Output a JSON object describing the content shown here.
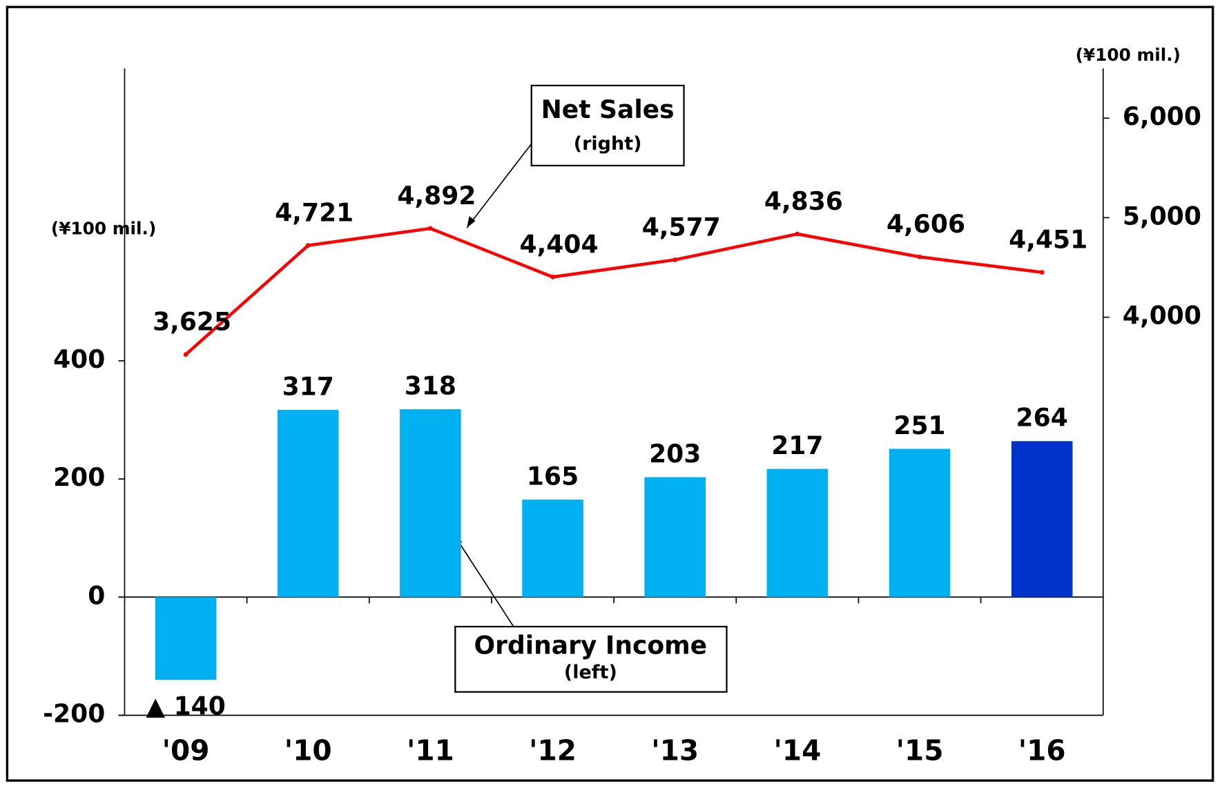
{
  "chart_data": {
    "type": "bar_line",
    "categories": [
      "'09",
      "'10",
      "'11",
      "'12",
      "'13",
      "'14",
      "'15",
      "'16"
    ],
    "series": [
      {
        "name": "Ordinary Income",
        "type": "bar",
        "axis": "y",
        "colors": [
          "#00b0f0",
          "#00b0f0",
          "#00b0f0",
          "#00b0f0",
          "#00b0f0",
          "#00b0f0",
          "#00b0f0",
          "#0033cc"
        ],
        "values": [
          -140,
          317,
          318,
          165,
          203,
          217,
          251,
          264
        ],
        "value_labels": [
          "▲ 140",
          "317",
          "318",
          "165",
          "203",
          "217",
          "251",
          "264"
        ]
      },
      {
        "name": "Net Sales",
        "type": "line",
        "axis": "y2",
        "color": "#ff0000",
        "values": [
          3625,
          4721,
          4892,
          4404,
          4577,
          4836,
          4606,
          4451
        ],
        "value_labels": [
          "3,625",
          "4,721",
          "4,892",
          "4,404",
          "4,577",
          "4,836",
          "4,606",
          "4,451"
        ]
      }
    ],
    "ylabel": "(¥100 mil.)",
    "y2label": "(¥100 mil.)",
    "ylim": [
      -200,
      895
    ],
    "yticks": [
      -200,
      0,
      200,
      400
    ],
    "y2lim": [
      0,
      6500
    ],
    "y2ticks": [
      {
        "value": 4000,
        "label": "4,000"
      },
      {
        "value": 5000,
        "label": "5,000"
      },
      {
        "value": 6000,
        "label": "6,000"
      }
    ],
    "annotations": [
      {
        "text": "Net Sales",
        "sub": "(right)"
      },
      {
        "text": "Ordinary Income",
        "sub": "(left)"
      }
    ]
  }
}
